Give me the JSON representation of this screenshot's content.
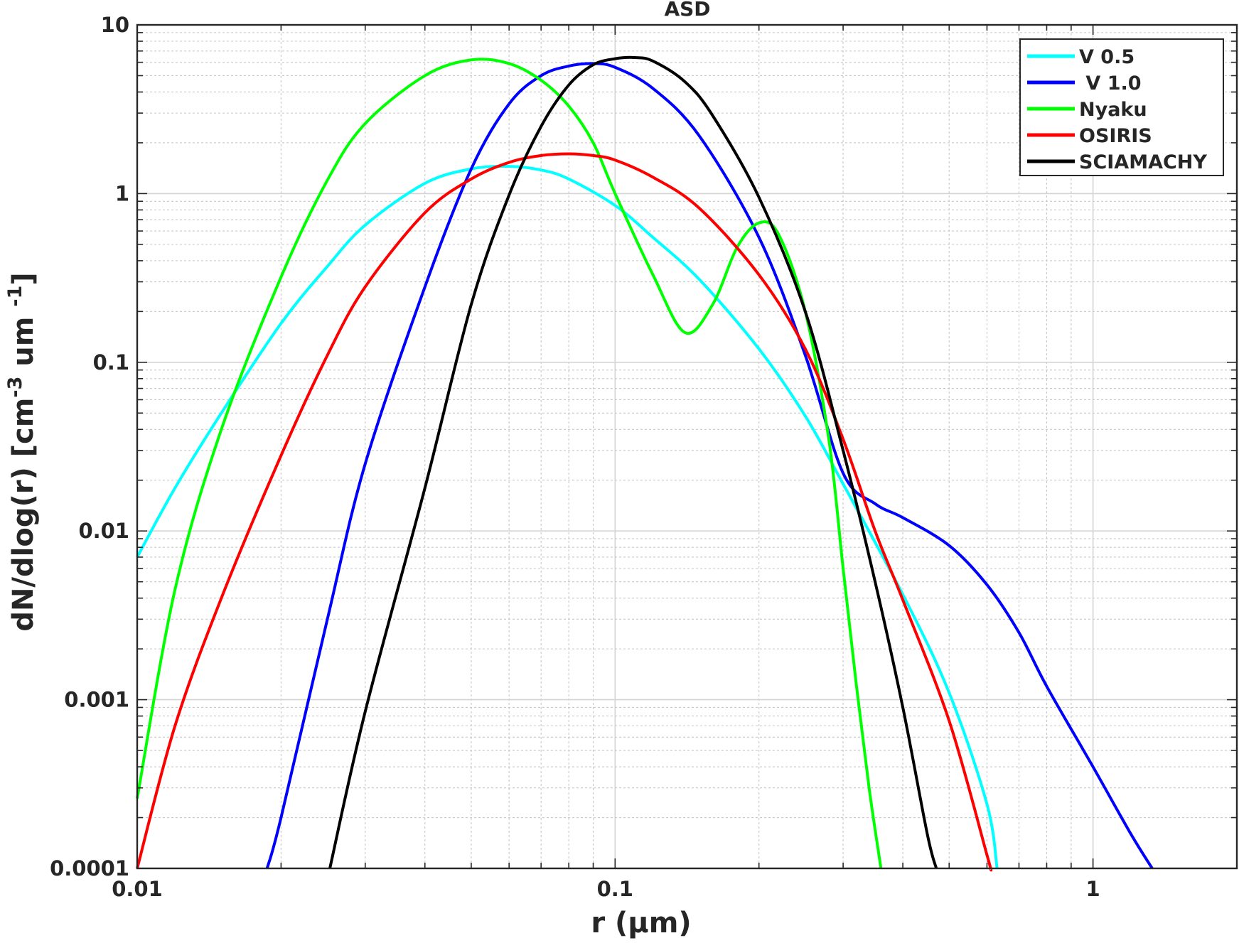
{
  "chart_data": {
    "type": "line",
    "title": "ASD",
    "xlabel": "r (μm)",
    "ylabel_main": "dN/dlog(r) [cm",
    "ylabel_sup1": "-3",
    "ylabel_mid": " um ",
    "ylabel_sup2": "-1",
    "ylabel_end": "]",
    "xscale": "log",
    "yscale": "log",
    "xlim": [
      0.01,
      2
    ],
    "ylim": [
      0.0001,
      10
    ],
    "grid": true,
    "minor_grid": true,
    "legend_position": "top-right",
    "x_ticks": [
      {
        "value": 0.01,
        "label": "0.01"
      },
      {
        "value": 0.1,
        "label": "0.1"
      },
      {
        "value": 1,
        "label": "1"
      }
    ],
    "y_ticks": [
      {
        "value": 0.0001,
        "label": "0.0001"
      },
      {
        "value": 0.001,
        "label": "0.001"
      },
      {
        "value": 0.01,
        "label": "0.01"
      },
      {
        "value": 0.1,
        "label": "0.1"
      },
      {
        "value": 1,
        "label": "1"
      },
      {
        "value": 10,
        "label": "10"
      }
    ],
    "series": [
      {
        "name": "V 0.5",
        "color": "#00ffff",
        "x": [
          0.01,
          0.012,
          0.015,
          0.02,
          0.025,
          0.03,
          0.04,
          0.05,
          0.06,
          0.07,
          0.08,
          0.1,
          0.12,
          0.15,
          0.2,
          0.25,
          0.3,
          0.4,
          0.5,
          0.6,
          0.63
        ],
        "y": [
          0.007,
          0.018,
          0.05,
          0.17,
          0.37,
          0.65,
          1.15,
          1.4,
          1.45,
          1.38,
          1.22,
          0.85,
          0.55,
          0.31,
          0.12,
          0.048,
          0.019,
          0.0042,
          0.0011,
          0.00024,
          0.0001
        ]
      },
      {
        "name": " V 1.0",
        "color": "#0000ff",
        "x": [
          0.0187,
          0.02,
          0.025,
          0.03,
          0.04,
          0.05,
          0.06,
          0.07,
          0.08,
          0.09,
          0.1,
          0.12,
          0.15,
          0.2,
          0.25,
          0.3,
          0.35,
          0.4,
          0.5,
          0.6,
          0.7,
          0.8,
          1.0,
          1.2,
          1.33
        ],
        "y": [
          0.0001,
          0.0002,
          0.003,
          0.025,
          0.28,
          1.4,
          3.4,
          5.0,
          5.7,
          5.9,
          5.6,
          4.2,
          2.2,
          0.55,
          0.11,
          0.022,
          0.0145,
          0.012,
          0.0082,
          0.0048,
          0.0025,
          0.0012,
          0.0004,
          0.00016,
          0.0001
        ]
      },
      {
        "name": "Nyaku",
        "color": "#00ff00",
        "x": [
          0.01,
          0.012,
          0.015,
          0.02,
          0.025,
          0.03,
          0.04,
          0.05,
          0.06,
          0.07,
          0.08,
          0.09,
          0.1,
          0.12,
          0.14,
          0.16,
          0.18,
          0.2,
          0.22,
          0.25,
          0.28,
          0.3,
          0.32,
          0.34,
          0.36
        ],
        "y": [
          0.00026,
          0.0045,
          0.04,
          0.32,
          1.2,
          2.6,
          5.0,
          6.2,
          5.9,
          4.7,
          3.3,
          2.0,
          1.0,
          0.33,
          0.15,
          0.22,
          0.48,
          0.67,
          0.57,
          0.2,
          0.035,
          0.006,
          0.0012,
          0.0003,
          0.0001
        ]
      },
      {
        "name": "OSIRIS",
        "color": "#ff0000",
        "x": [
          0.01,
          0.012,
          0.015,
          0.02,
          0.025,
          0.03,
          0.04,
          0.05,
          0.06,
          0.07,
          0.08,
          0.09,
          0.1,
          0.12,
          0.15,
          0.2,
          0.25,
          0.3,
          0.35,
          0.4,
          0.5,
          0.6,
          0.61
        ],
        "y": [
          0.0001,
          0.0007,
          0.004,
          0.028,
          0.11,
          0.28,
          0.77,
          1.22,
          1.53,
          1.68,
          1.72,
          1.68,
          1.58,
          1.25,
          0.82,
          0.33,
          0.12,
          0.035,
          0.01,
          0.0039,
          0.00075,
          0.00012,
          0.0001
        ]
      },
      {
        "name": "SCIAMACHY",
        "color": "#000000",
        "x": [
          0.0253,
          0.03,
          0.04,
          0.05,
          0.06,
          0.07,
          0.08,
          0.09,
          0.1,
          0.11,
          0.12,
          0.14,
          0.16,
          0.2,
          0.25,
          0.3,
          0.35,
          0.4,
          0.45,
          0.47
        ],
        "y": [
          0.0001,
          0.00085,
          0.018,
          0.22,
          0.98,
          2.5,
          4.4,
          5.8,
          6.3,
          6.4,
          6.1,
          4.6,
          2.9,
          0.95,
          0.2,
          0.03,
          0.005,
          0.0009,
          0.00016,
          0.0001
        ]
      }
    ]
  }
}
